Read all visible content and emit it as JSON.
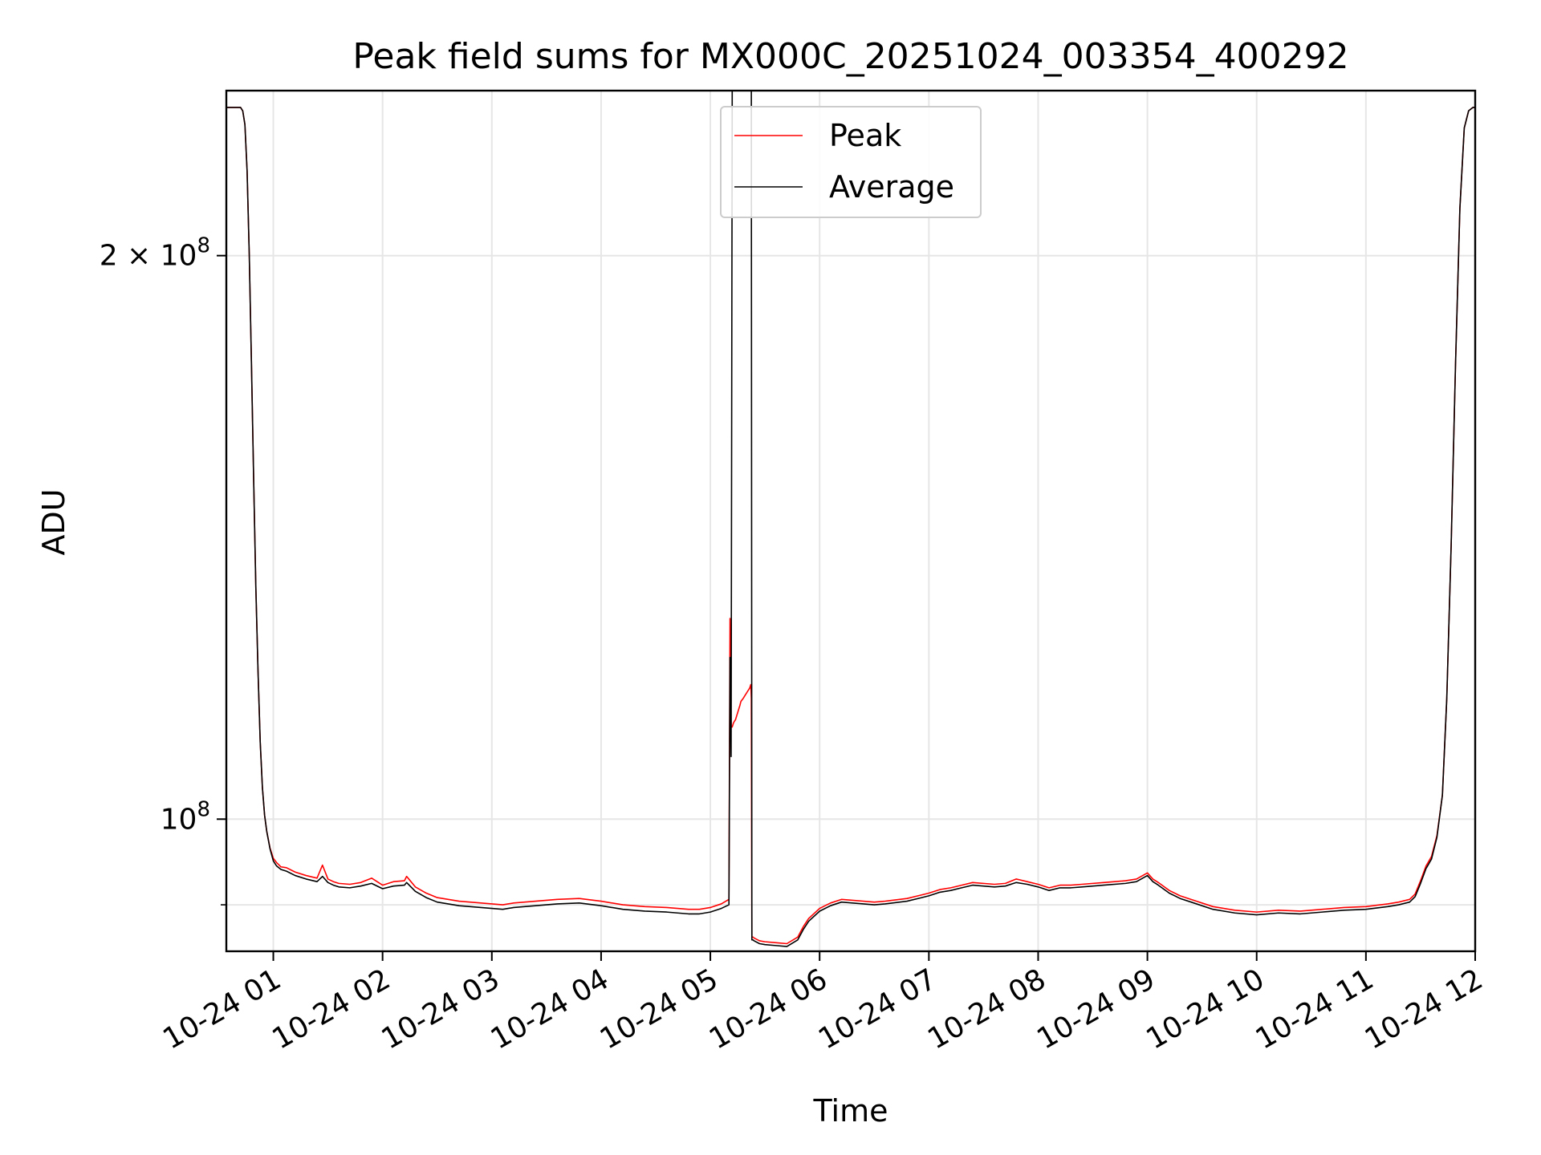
{
  "chart_data": {
    "type": "line",
    "title": "Peak field sums for MX000C_20251024_003354_400292",
    "xlabel": "Time",
    "ylabel": "ADU",
    "yscale": "log",
    "xlim": [
      0.57,
      12.0
    ],
    "ylim": [
      85000000,
      245000000
    ],
    "grid": true,
    "legend_position": "top-center",
    "x_unit": "hours after 2025-10-24 00:00",
    "x_ticks": [
      {
        "value": 1,
        "label": "10-24 01"
      },
      {
        "value": 2,
        "label": "10-24 02"
      },
      {
        "value": 3,
        "label": "10-24 03"
      },
      {
        "value": 4,
        "label": "10-24 04"
      },
      {
        "value": 5,
        "label": "10-24 05"
      },
      {
        "value": 6,
        "label": "10-24 06"
      },
      {
        "value": 7,
        "label": "10-24 07"
      },
      {
        "value": 8,
        "label": "10-24 08"
      },
      {
        "value": 9,
        "label": "10-24 09"
      },
      {
        "value": 10,
        "label": "10-24 10"
      },
      {
        "value": 11,
        "label": "10-24 11"
      },
      {
        "value": 12,
        "label": "10-24 12"
      }
    ],
    "y_ticks_major": [
      {
        "value": 100000000,
        "base": "10",
        "exp": "8",
        "mult": ""
      },
      {
        "value": 200000000,
        "base": "10",
        "exp": "8",
        "mult": "2 × "
      }
    ],
    "y_ticks_minor": [
      90000000
    ],
    "series": [
      {
        "name": "Peak",
        "color": "#ff0000",
        "x": [
          0.57,
          0.7,
          0.72,
          0.74,
          0.76,
          0.78,
          0.8,
          0.82,
          0.84,
          0.86,
          0.88,
          0.9,
          0.92,
          0.94,
          0.97,
          1.0,
          1.03,
          1.07,
          1.12,
          1.2,
          1.3,
          1.4,
          1.45,
          1.5,
          1.55,
          1.6,
          1.7,
          1.8,
          1.9,
          2.0,
          2.1,
          2.2,
          2.22,
          2.3,
          2.4,
          2.5,
          2.6,
          2.7,
          2.8,
          2.9,
          3.0,
          3.1,
          3.2,
          3.4,
          3.6,
          3.8,
          4.0,
          4.2,
          4.4,
          4.6,
          4.7,
          4.8,
          4.9,
          5.0,
          5.1,
          5.17,
          5.18,
          5.19,
          5.2,
          5.21,
          5.22,
          5.23,
          5.24,
          5.25,
          5.26,
          5.27,
          5.28,
          5.3,
          5.32,
          5.34,
          5.36,
          5.37,
          5.375,
          5.38,
          5.39,
          5.4,
          5.45,
          5.5,
          5.6,
          5.7,
          5.8,
          5.85,
          5.9,
          6.0,
          6.1,
          6.2,
          6.3,
          6.4,
          6.5,
          6.6,
          6.8,
          7.0,
          7.1,
          7.2,
          7.3,
          7.4,
          7.6,
          7.7,
          7.8,
          7.9,
          8.0,
          8.1,
          8.2,
          8.3,
          8.4,
          8.6,
          8.8,
          8.9,
          9.0,
          9.05,
          9.1,
          9.2,
          9.3,
          9.4,
          9.6,
          9.8,
          10.0,
          10.2,
          10.4,
          10.6,
          10.8,
          11.0,
          11.2,
          11.3,
          11.4,
          11.45,
          11.5,
          11.55,
          11.6,
          11.65,
          11.7,
          11.74,
          11.78,
          11.82,
          11.86,
          11.9,
          11.94,
          11.98,
          12.0
        ],
        "values": [
          240000000,
          240000000,
          239000000,
          235000000,
          222000000,
          200000000,
          175000000,
          152000000,
          133000000,
          120000000,
          110000000,
          104000000,
          100500000,
          98500000,
          96500000,
          95300000,
          94800000,
          94300000,
          94200000,
          93700000,
          93300000,
          93000000,
          94500000,
          92900000,
          92600000,
          92400000,
          92300000,
          92500000,
          93000000,
          92200000,
          92600000,
          92700000,
          93200000,
          92000000,
          91300000,
          90800000,
          90600000,
          90400000,
          90300000,
          90200000,
          90100000,
          90000000,
          90200000,
          90400000,
          90600000,
          90700000,
          90400000,
          90000000,
          89800000,
          89700000,
          89600000,
          89500000,
          89500000,
          89700000,
          90100000,
          90600000,
          128000000,
          112000000,
          112000000,
          112500000,
          112800000,
          113000000,
          113500000,
          114000000,
          114500000,
          115000000,
          115600000,
          116000000,
          116500000,
          117000000,
          117500000,
          118000000,
          116000000,
          86500000,
          86500000,
          86400000,
          86100000,
          86000000,
          85900000,
          85800000,
          86500000,
          87600000,
          88500000,
          89600000,
          90200000,
          90600000,
          90500000,
          90400000,
          90300000,
          90400000,
          90700000,
          91300000,
          91700000,
          91900000,
          92200000,
          92500000,
          92300000,
          92400000,
          92900000,
          92600000,
          92300000,
          91900000,
          92200000,
          92200000,
          92300000,
          92500000,
          92700000,
          92900000,
          93600000,
          92900000,
          92500000,
          91600000,
          91000000,
          90600000,
          89800000,
          89400000,
          89200000,
          89400000,
          89300000,
          89500000,
          89700000,
          89800000,
          90100000,
          90300000,
          90600000,
          91200000,
          92700000,
          94400000,
          95500000,
          98000000,
          103000000,
          116000000,
          140000000,
          175000000,
          212000000,
          234000000,
          239000000,
          240000000,
          240000000
        ]
      },
      {
        "name": "Average",
        "color": "#000000",
        "x": [
          0.57,
          0.7,
          0.72,
          0.74,
          0.76,
          0.78,
          0.8,
          0.82,
          0.84,
          0.86,
          0.88,
          0.9,
          0.92,
          0.94,
          0.97,
          1.0,
          1.03,
          1.07,
          1.12,
          1.2,
          1.3,
          1.4,
          1.45,
          1.5,
          1.55,
          1.6,
          1.7,
          1.8,
          1.9,
          2.0,
          2.1,
          2.2,
          2.22,
          2.3,
          2.4,
          2.5,
          2.6,
          2.7,
          2.8,
          2.9,
          3.0,
          3.1,
          3.2,
          3.4,
          3.6,
          3.8,
          4.0,
          4.2,
          4.4,
          4.6,
          4.7,
          4.8,
          4.9,
          5.0,
          5.1,
          5.17,
          5.18,
          5.19,
          5.2,
          5.205,
          5.21,
          5.215,
          5.35,
          5.36,
          5.37,
          5.375,
          5.38,
          5.39,
          5.4,
          5.45,
          5.5,
          5.6,
          5.7,
          5.8,
          5.85,
          5.9,
          6.0,
          6.1,
          6.2,
          6.3,
          6.4,
          6.5,
          6.6,
          6.8,
          7.0,
          7.1,
          7.2,
          7.3,
          7.4,
          7.6,
          7.7,
          7.8,
          7.9,
          8.0,
          8.1,
          8.2,
          8.3,
          8.4,
          8.6,
          8.8,
          8.9,
          9.0,
          9.05,
          9.1,
          9.2,
          9.3,
          9.4,
          9.6,
          9.8,
          10.0,
          10.2,
          10.4,
          10.6,
          10.8,
          11.0,
          11.2,
          11.3,
          11.4,
          11.45,
          11.5,
          11.55,
          11.6,
          11.65,
          11.7,
          11.74,
          11.78,
          11.82,
          11.86,
          11.9,
          11.94,
          11.98,
          12.0
        ],
        "values": [
          240000000,
          240000000,
          239000000,
          235000000,
          222000000,
          200000000,
          175000000,
          152000000,
          133000000,
          120000000,
          110000000,
          104000000,
          100500000,
          98500000,
          96400000,
          95000000,
          94400000,
          94000000,
          93800000,
          93300000,
          92900000,
          92600000,
          93200000,
          92500000,
          92200000,
          92000000,
          91900000,
          92100000,
          92400000,
          91800000,
          92100000,
          92200000,
          92500000,
          91500000,
          90800000,
          90300000,
          90100000,
          89900000,
          89800000,
          89700000,
          89600000,
          89500000,
          89700000,
          89900000,
          90100000,
          90200000,
          89900000,
          89500000,
          89300000,
          89200000,
          89100000,
          89000000,
          89000000,
          89200000,
          89600000,
          90000000,
          122000000,
          108000000,
          245000000,
          245000000,
          245000000,
          245000000,
          245000000,
          245000000,
          245000000,
          245000000,
          86200000,
          86200000,
          86100000,
          85800000,
          85700000,
          85600000,
          85500000,
          86200000,
          87300000,
          88200000,
          89300000,
          89900000,
          90300000,
          90200000,
          90100000,
          90000000,
          90100000,
          90400000,
          91000000,
          91400000,
          91600000,
          91900000,
          92200000,
          92000000,
          92100000,
          92500000,
          92300000,
          92000000,
          91600000,
          91900000,
          91900000,
          92000000,
          92200000,
          92400000,
          92600000,
          93300000,
          92600000,
          92200000,
          91300000,
          90700000,
          90300000,
          89500000,
          89100000,
          88900000,
          89100000,
          89000000,
          89200000,
          89400000,
          89500000,
          89800000,
          90000000,
          90300000,
          90900000,
          92400000,
          94100000,
          95200000,
          97800000,
          103000000,
          116000000,
          140000000,
          175000000,
          212000000,
          234000000,
          239000000,
          240000000,
          240000000
        ]
      }
    ]
  }
}
